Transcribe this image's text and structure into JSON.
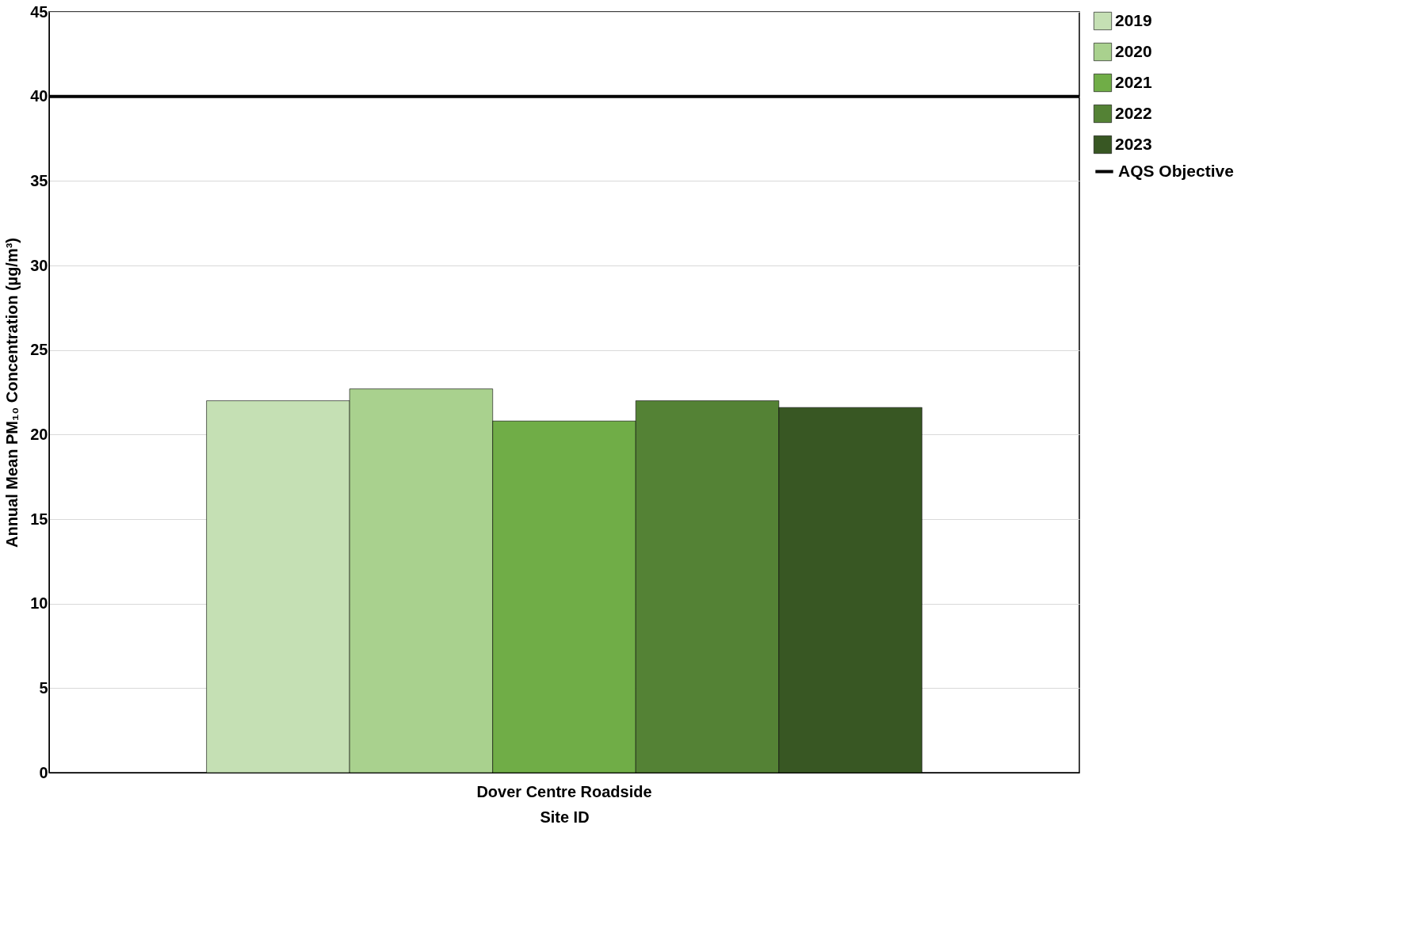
{
  "chart_data": {
    "type": "bar",
    "xlabel": "Site ID",
    "ylabel": "Annual Mean PM₁₀ Concentration (µg/m³)",
    "categories": [
      "Dover Centre Roadside"
    ],
    "series": [
      {
        "name": "2019",
        "color": "#c5e0b4",
        "values": [
          22.0
        ]
      },
      {
        "name": "2020",
        "color": "#a9d18e",
        "values": [
          22.7
        ]
      },
      {
        "name": "2021",
        "color": "#70ad47",
        "values": [
          20.8
        ]
      },
      {
        "name": "2022",
        "color": "#548235",
        "values": [
          22.0
        ]
      },
      {
        "name": "2023",
        "color": "#385723",
        "values": [
          21.6
        ]
      }
    ],
    "ref_lines": [
      {
        "axis": "y",
        "value": 40,
        "label": "AQS Objective",
        "color": "#000000"
      }
    ],
    "ylim": [
      0,
      45
    ],
    "yticks": [
      0,
      5,
      10,
      15,
      20,
      25,
      30,
      35,
      40,
      45
    ],
    "grid": "y",
    "legend": "right"
  }
}
